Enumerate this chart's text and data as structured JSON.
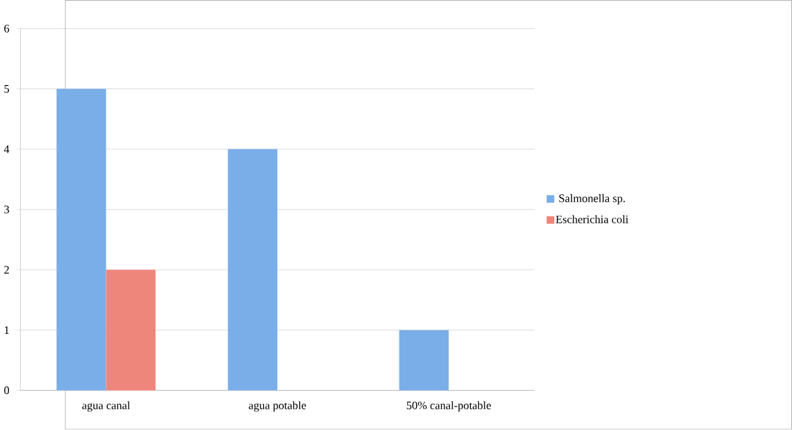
{
  "chart_data": {
    "type": "bar",
    "categories": [
      "agua canal",
      "agua potable",
      "50% canal-potable"
    ],
    "series": [
      {
        "name": "Salmonella sp.",
        "color": "#7aaee8",
        "values": [
          5,
          4,
          1
        ]
      },
      {
        "name": "Escherichia coli",
        "color": "#ef867c",
        "values": [
          2,
          0,
          0
        ]
      }
    ],
    "ylim": [
      0,
      6
    ],
    "yticks": [
      0,
      1,
      2,
      3,
      4,
      5,
      6
    ],
    "grid": "y",
    "legend": "right"
  }
}
